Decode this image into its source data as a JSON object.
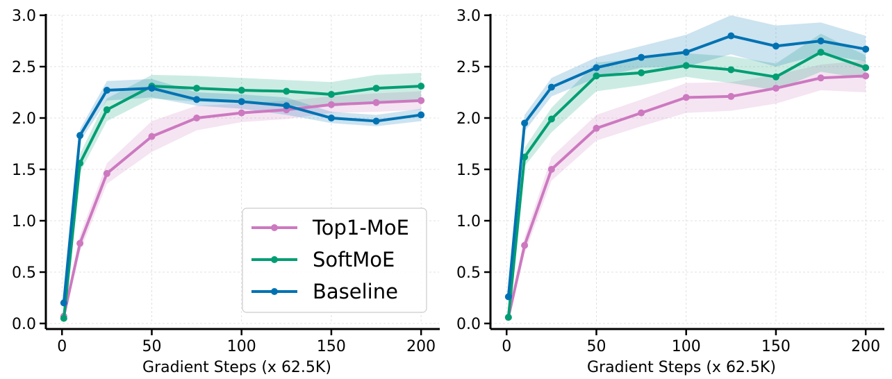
{
  "chart_data": [
    {
      "type": "line",
      "xlabel": "Gradient Steps (x 62.5K)",
      "ylabel": "",
      "xlim": [
        -9,
        210
      ],
      "ylim": [
        0,
        3.0
      ],
      "x_ticks": [
        0,
        50,
        100,
        150,
        200
      ],
      "y_ticks": [
        0.0,
        0.5,
        1.0,
        1.5,
        2.0,
        2.5,
        3.0
      ],
      "grid": true,
      "legend": {
        "position": "bottom-right",
        "entries": [
          "Top1-MoE",
          "SoftMoE",
          "Baseline"
        ]
      },
      "x": [
        1,
        10,
        25,
        50,
        75,
        100,
        125,
        150,
        175,
        200
      ],
      "series": [
        {
          "name": "Top1-MoE",
          "color": "#cc79c0",
          "values": [
            0.07,
            0.78,
            1.46,
            1.82,
            2.0,
            2.05,
            2.08,
            2.13,
            2.15,
            2.17
          ],
          "lower": [
            0.03,
            0.7,
            1.36,
            1.67,
            1.88,
            1.96,
            1.99,
            2.05,
            2.06,
            2.08
          ],
          "upper": [
            0.11,
            0.86,
            1.56,
            1.97,
            2.12,
            2.14,
            2.17,
            2.21,
            2.24,
            2.26
          ]
        },
        {
          "name": "SoftMoE",
          "color": "#009e73",
          "values": [
            0.05,
            1.56,
            2.08,
            2.31,
            2.29,
            2.27,
            2.26,
            2.23,
            2.29,
            2.31
          ],
          "lower": [
            0.02,
            1.47,
            1.97,
            2.19,
            2.16,
            2.14,
            2.12,
            2.11,
            2.15,
            2.17
          ],
          "upper": [
            0.08,
            1.65,
            2.19,
            2.42,
            2.41,
            2.39,
            2.37,
            2.35,
            2.42,
            2.44
          ]
        },
        {
          "name": "Baseline",
          "color": "#0072b2",
          "values": [
            0.2,
            1.83,
            2.27,
            2.29,
            2.18,
            2.16,
            2.12,
            2.0,
            1.97,
            2.03
          ],
          "lower": [
            0.15,
            1.77,
            2.17,
            2.2,
            2.12,
            2.09,
            2.03,
            1.95,
            1.92,
            1.97
          ],
          "upper": [
            0.25,
            1.89,
            2.36,
            2.38,
            2.25,
            2.23,
            2.2,
            2.06,
            2.03,
            2.09
          ]
        }
      ]
    },
    {
      "type": "line",
      "xlabel": "Gradient Steps (x 62.5K)",
      "ylabel": "",
      "xlim": [
        -9,
        210
      ],
      "ylim": [
        0,
        3.0
      ],
      "x_ticks": [
        0,
        50,
        100,
        150,
        200
      ],
      "y_ticks": [
        0.0,
        0.5,
        1.0,
        1.5,
        2.0,
        2.5,
        3.0
      ],
      "grid": true,
      "x": [
        1,
        10,
        25,
        50,
        75,
        100,
        125,
        150,
        175,
        200
      ],
      "series": [
        {
          "name": "Top1-MoE",
          "color": "#cc79c0",
          "values": [
            0.06,
            0.76,
            1.5,
            1.9,
            2.05,
            2.2,
            2.21,
            2.29,
            2.39,
            2.41
          ],
          "lower": [
            0.02,
            0.68,
            1.39,
            1.78,
            1.92,
            2.05,
            2.07,
            2.14,
            2.27,
            2.25
          ],
          "upper": [
            0.1,
            0.84,
            1.62,
            2.03,
            2.18,
            2.34,
            2.35,
            2.42,
            2.52,
            2.56
          ]
        },
        {
          "name": "SoftMoE",
          "color": "#009e73",
          "values": [
            0.06,
            1.62,
            1.99,
            2.41,
            2.44,
            2.51,
            2.47,
            2.4,
            2.64,
            2.49
          ],
          "lower": [
            0.02,
            1.53,
            1.86,
            2.26,
            2.32,
            2.4,
            2.34,
            2.27,
            2.45,
            2.38
          ],
          "upper": [
            0.1,
            1.71,
            2.1,
            2.54,
            2.58,
            2.63,
            2.6,
            2.53,
            2.82,
            2.61
          ]
        },
        {
          "name": "Baseline",
          "color": "#0072b2",
          "values": [
            0.26,
            1.95,
            2.3,
            2.49,
            2.59,
            2.64,
            2.8,
            2.7,
            2.75,
            2.67
          ],
          "lower": [
            0.21,
            1.87,
            2.21,
            2.39,
            2.49,
            2.5,
            2.62,
            2.5,
            2.62,
            2.55
          ],
          "upper": [
            0.31,
            2.03,
            2.39,
            2.59,
            2.7,
            2.81,
            3.0,
            2.9,
            2.93,
            2.8
          ]
        }
      ]
    }
  ]
}
